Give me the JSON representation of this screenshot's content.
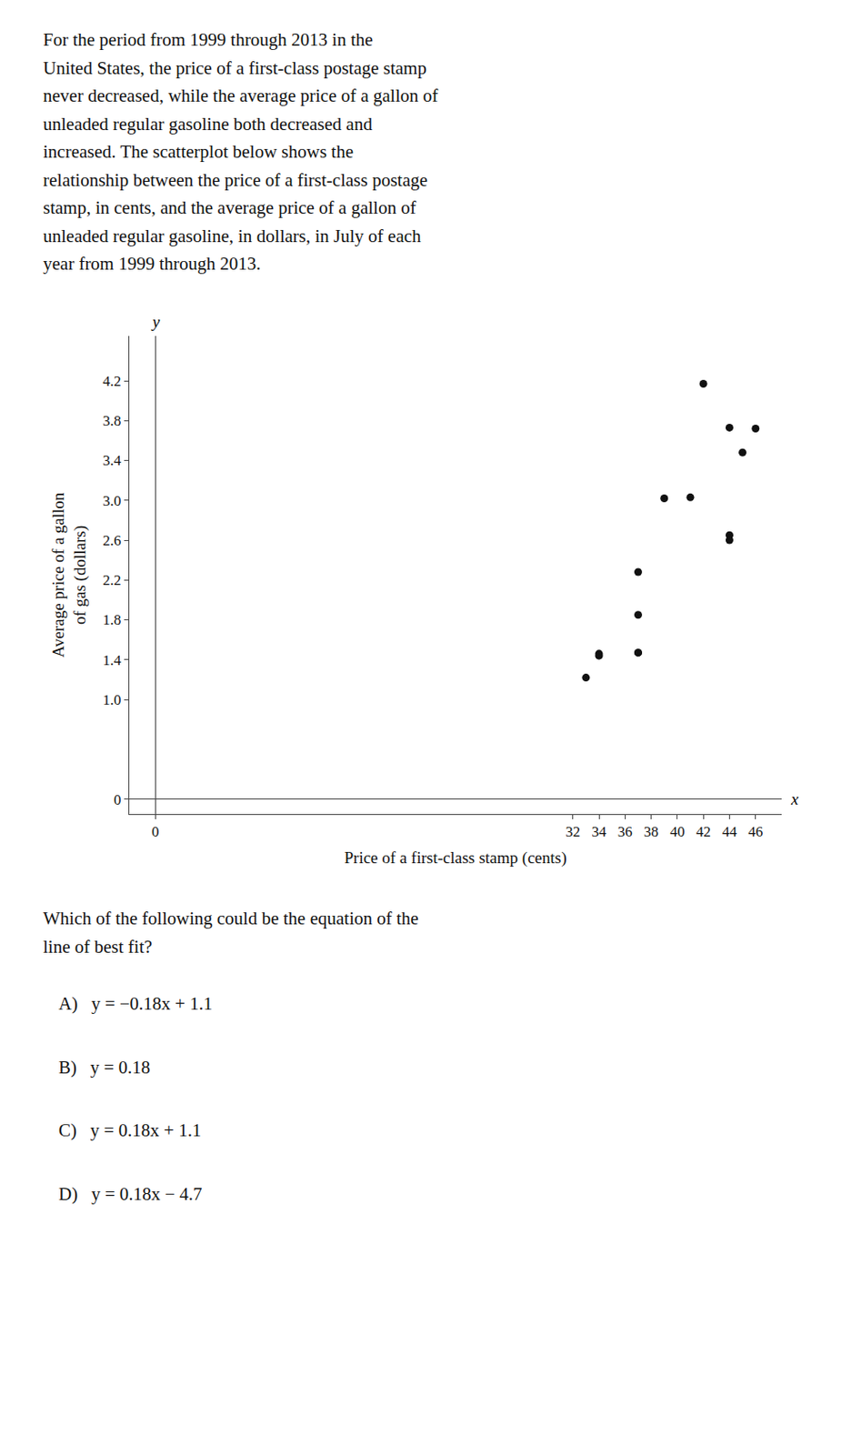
{
  "chart_data": {
    "type": "scatter",
    "paragraph": "For the period from 1999 through 2013 in the\nUnited States, the price of a first-class postage stamp\nnever decreased, while the average price of a gallon of\nunleaded regular gasoline both decreased and\nincreased. The scatterplot below shows the\nrelationship between the price of a first-class postage\nstamp, in cents, and the average price of a gallon of\nunleaded regular gasoline, in dollars, in July of each\nyear from 1999 through 2013.",
    "x": [
      33,
      34,
      34,
      37,
      37,
      37,
      37,
      39,
      41,
      42,
      44,
      44,
      44,
      45,
      46
    ],
    "values": [
      1.22,
      1.46,
      1.44,
      1.47,
      1.47,
      1.85,
      2.28,
      3.02,
      3.03,
      4.17,
      2.65,
      2.6,
      3.73,
      3.48,
      3.72
    ],
    "color": "#111111",
    "xlabel": "Price of a first-class stamp (cents)",
    "ylabel": "Average price of a gallon\nof gas (dollars)",
    "xlim": [
      -2,
      48
    ],
    "ylim": [
      -0.15,
      4.65
    ],
    "xticks": [
      0,
      32,
      34,
      36,
      38,
      40,
      42,
      44,
      46
    ],
    "yticks": [
      0,
      {
        "value": 1.0,
        "label": "1.0"
      },
      1.4,
      1.8,
      2.2,
      2.6,
      {
        "value": 3.0,
        "label": "3.0"
      },
      3.4,
      3.8,
      4.2
    ],
    "grid": false,
    "annotations": [
      "x",
      "y"
    ],
    "question": "Which of the following could be the equation of the\nline of best fit?",
    "answers": [
      "A)   y = −0.18x + 1.1",
      "B)   y = 0.18",
      "C)   y = 0.18x + 1.1",
      "D)   y = 0.18x − 4.7"
    ]
  }
}
